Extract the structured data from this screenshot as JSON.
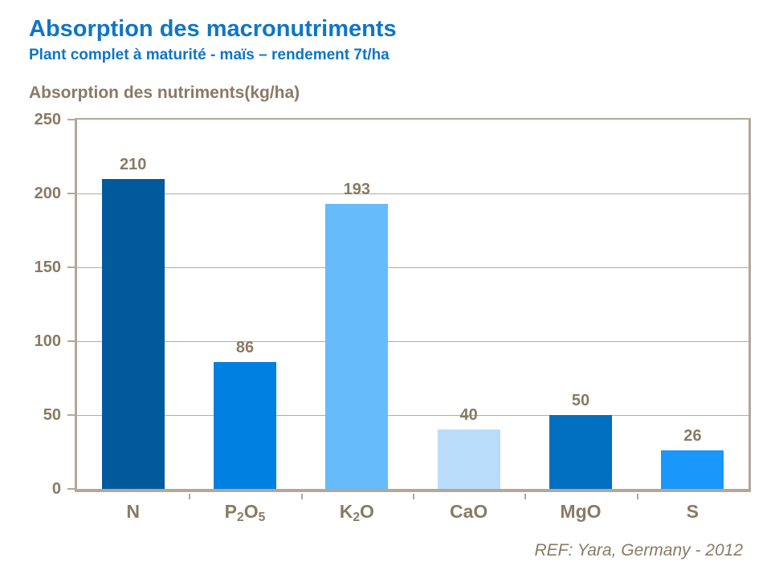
{
  "header": {
    "title": "Absorption des macronutriments",
    "subtitle": "Plant complet à maturité - maïs – rendement 7t/ha"
  },
  "footer": {
    "ref": "REF: Yara, Germany - 2012"
  },
  "colors": {
    "title_blue": "#0e76c6",
    "text_brown": "#8a7a64",
    "axis_tan": "#b3a79a",
    "grid_tan": "#b6ab9d"
  },
  "chart_data": {
    "type": "bar",
    "title": "Absorption des nutriments(kg/ha)",
    "categories": [
      "N",
      "P2O5",
      "K2O",
      "CaO",
      "MgO",
      "S"
    ],
    "values": [
      210,
      86,
      193,
      40,
      50,
      26
    ],
    "bar_colors": [
      "#005a9b",
      "#0081e2",
      "#66bbfa",
      "#b9dcfa",
      "#006fc0",
      "#1997fa"
    ],
    "xlabel": "",
    "ylabel": "",
    "ylim": [
      0,
      250
    ],
    "yticks": [
      0,
      50,
      100,
      150,
      200,
      250
    ],
    "grid": "horizontal",
    "legend": "none",
    "value_labels": true
  }
}
